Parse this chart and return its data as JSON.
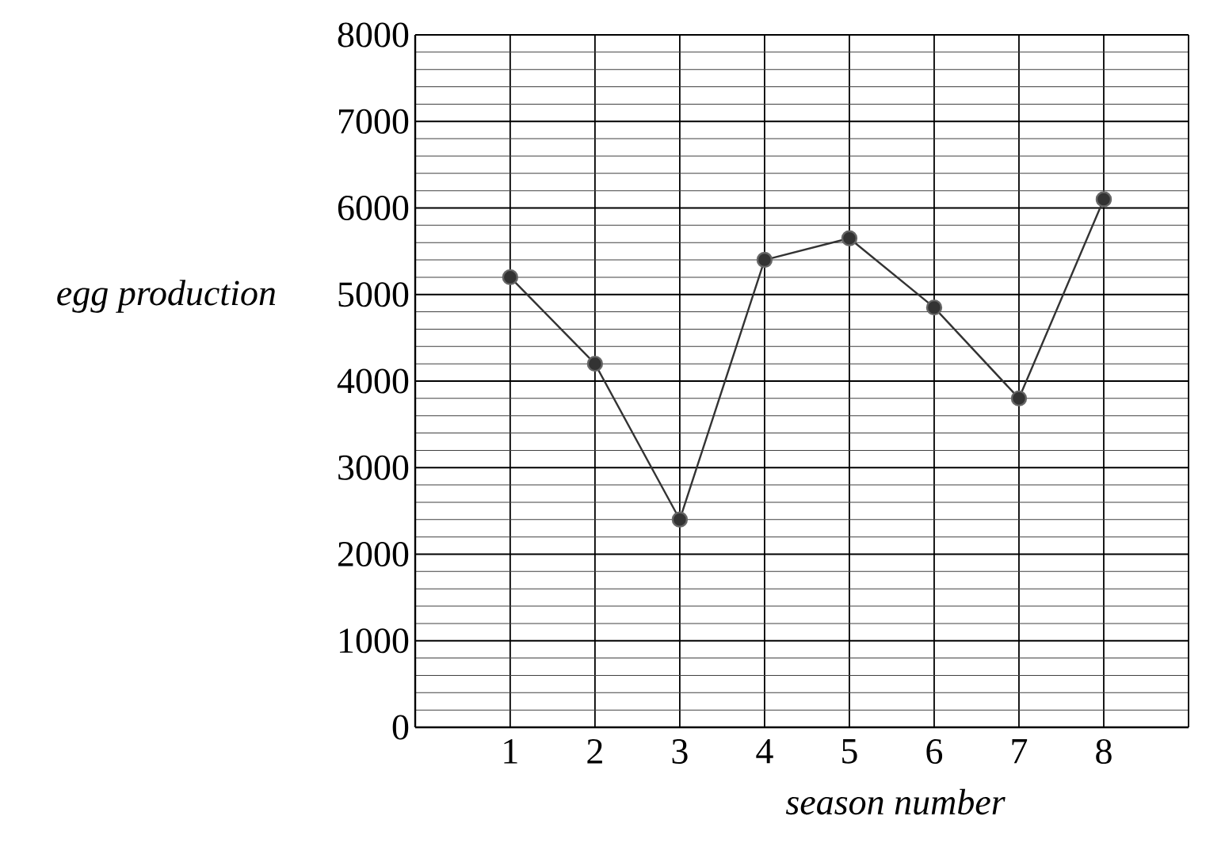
{
  "chart_data": {
    "type": "line",
    "xlabel": "season number",
    "ylabel": "egg production",
    "categories": [
      "1",
      "2",
      "3",
      "4",
      "5",
      "6",
      "7",
      "8"
    ],
    "values": [
      5200,
      4200,
      2400,
      5400,
      5650,
      4850,
      3800,
      6100
    ],
    "color": "#333333",
    "marker": "circle",
    "line_style": "solid",
    "ylim": [
      0,
      8000
    ],
    "yticks": [
      0,
      1000,
      2000,
      3000,
      4000,
      5000,
      6000,
      7000,
      8000
    ],
    "grid": true
  }
}
